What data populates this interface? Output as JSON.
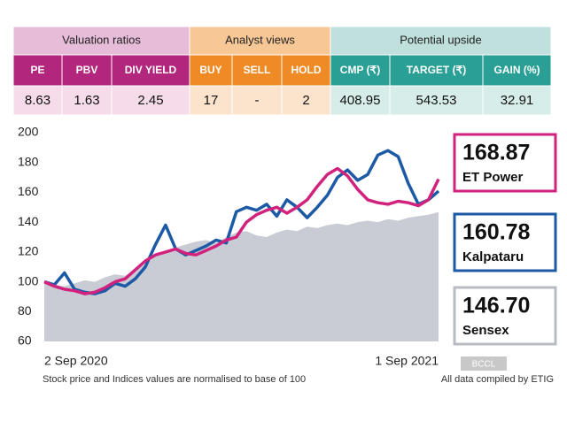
{
  "table": {
    "groups": [
      "Valuation ratios",
      "Analyst views",
      "Potential upside"
    ],
    "columns": [
      "PE",
      "PBV",
      "DIV YIELD",
      "BUY",
      "SELL",
      "HOLD",
      "CMP (₹)",
      "TARGET (₹)",
      "GAIN (%)"
    ],
    "rows": [
      [
        8.63,
        1.63,
        2.45,
        17,
        "-",
        2,
        408.95,
        543.53,
        32.91
      ]
    ]
  },
  "chart_data": {
    "type": "line",
    "categories": [
      "2 Sep 2020",
      null,
      null,
      null,
      null,
      null,
      null,
      null,
      null,
      null,
      null,
      null,
      null,
      null,
      null,
      null,
      null,
      null,
      null,
      null,
      null,
      null,
      null,
      null,
      null,
      null,
      null,
      null,
      null,
      null,
      null,
      null,
      null,
      null,
      null,
      null,
      null,
      null,
      null,
      "1 Sep 2021"
    ],
    "series": [
      {
        "name": "Sensex",
        "color": "#c9ccd4",
        "fill": true,
        "values": [
          100,
          98,
          97,
          99,
          101,
          100,
          103,
          105,
          104,
          108,
          112,
          117,
          121,
          123,
          125,
          127,
          128,
          126,
          130,
          133,
          134,
          131,
          130,
          133,
          135,
          134,
          137,
          136,
          138,
          139,
          138,
          140,
          141,
          140,
          142,
          141,
          143,
          144,
          145,
          146.7
        ],
        "value_labels": [
          null,
          null,
          null,
          null,
          null,
          null,
          null,
          null,
          null,
          null,
          null,
          null,
          null,
          null,
          null,
          null,
          null,
          null,
          null,
          null,
          null,
          null,
          null,
          null,
          null,
          null,
          null,
          null,
          null,
          null,
          null,
          null,
          null,
          null,
          null,
          null,
          null,
          null,
          null,
          "146.70"
        ]
      },
      {
        "name": "Kalpataru",
        "color": "#1c5aa6",
        "fill": false,
        "values": [
          100,
          98,
          106,
          95,
          93,
          92,
          94,
          99,
          97,
          102,
          110,
          125,
          138,
          122,
          118,
          121,
          124,
          128,
          126,
          147,
          150,
          148,
          152,
          144,
          155,
          150,
          143,
          150,
          158,
          170,
          175,
          168,
          172,
          185,
          188,
          184,
          166,
          152,
          155,
          160.78
        ]
      },
      {
        "name": "ET Power",
        "color": "#d1237d",
        "fill": false,
        "values": [
          100,
          97,
          95,
          94,
          92,
          93,
          96,
          100,
          102,
          108,
          114,
          118,
          120,
          122,
          119,
          118,
          121,
          124,
          128,
          130,
          140,
          145,
          148,
          150,
          146,
          150,
          155,
          164,
          172,
          176,
          171,
          162,
          155,
          153,
          152,
          154,
          153,
          151,
          155,
          168.87
        ]
      }
    ],
    "legend_order": [
      "ET Power",
      "Kalpataru",
      "Sensex"
    ],
    "ylim": [
      60,
      200
    ],
    "yticks": [
      60,
      80,
      100,
      120,
      140,
      160,
      180,
      200
    ],
    "notes": [
      "Stock price and Indices values are normalised to base of 100",
      "All data compiled by ETIG"
    ],
    "watermark": "BCCL"
  }
}
